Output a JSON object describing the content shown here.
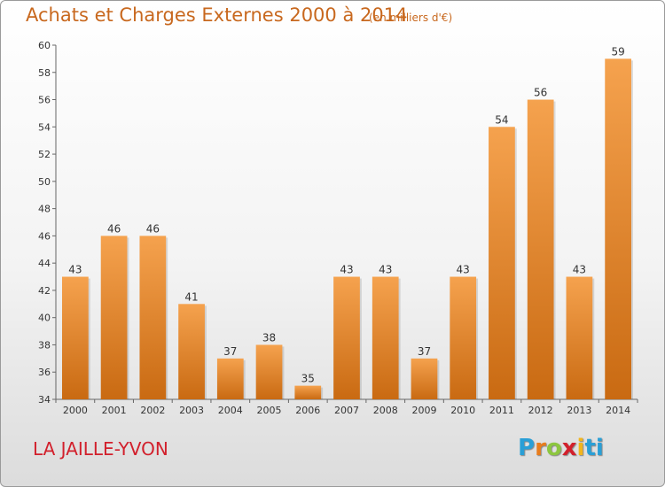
{
  "header": {
    "title": "Achats et Charges Externes 2000 à 2014",
    "unit": "(en milliers d'€)"
  },
  "footer": {
    "city": "LA JAILLE-YVON",
    "logo": "Proxiti",
    "logo_colors": [
      "#2a9fd6",
      "#e87d1e",
      "#8cc63f",
      "#d2202c",
      "#f2b51c",
      "#2a9fd6"
    ]
  },
  "chart_data": {
    "type": "bar",
    "title": "Achats et Charges Externes 2000 à 2014",
    "subtitle": "(en milliers d'€)",
    "categories": [
      "2000",
      "2001",
      "2002",
      "2003",
      "2004",
      "2005",
      "2006",
      "2007",
      "2008",
      "2009",
      "2010",
      "2011",
      "2012",
      "2013",
      "2014"
    ],
    "values": [
      43,
      46,
      46,
      41,
      37,
      38,
      35,
      43,
      43,
      37,
      43,
      54,
      56,
      43,
      59
    ],
    "ylim": [
      34,
      60
    ],
    "yticks": [
      34,
      36,
      38,
      40,
      42,
      44,
      46,
      48,
      50,
      52,
      54,
      56,
      58,
      60
    ],
    "grid": false,
    "legend": "none",
    "bar_color_top": "#f5a24e",
    "bar_color_bottom": "#c96a12"
  }
}
